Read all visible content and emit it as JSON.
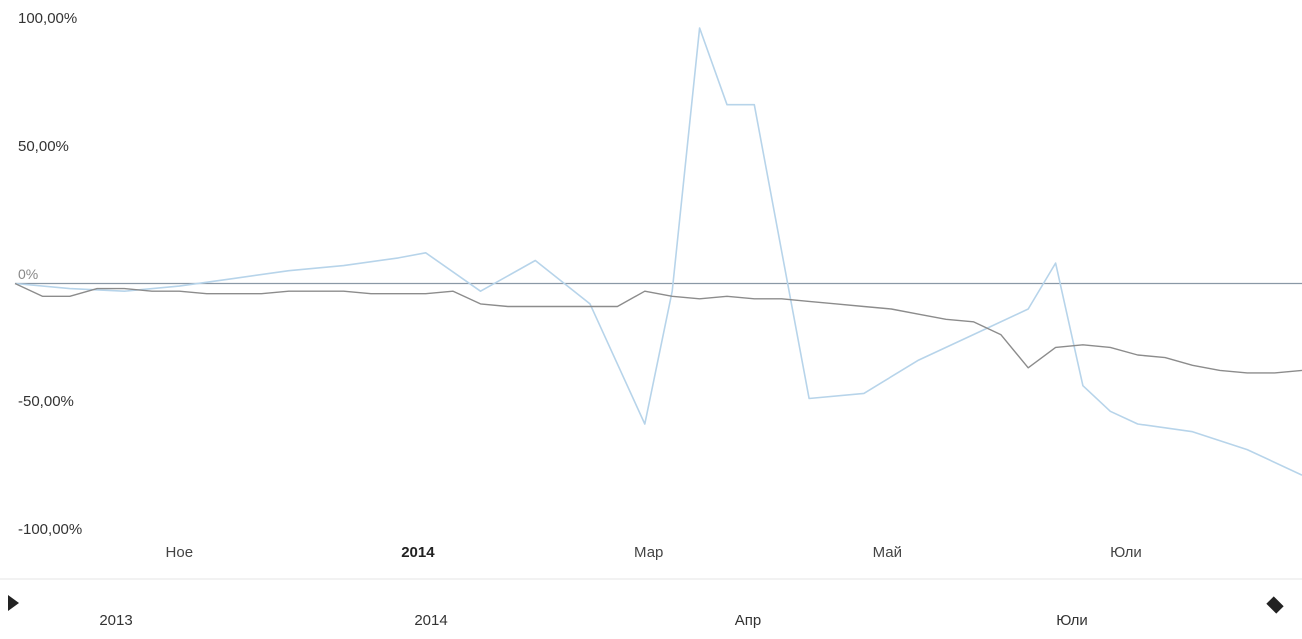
{
  "chart_data": {
    "type": "line",
    "title": "",
    "xlabel": "",
    "ylabel": "",
    "ylim": [
      -100,
      100
    ],
    "y_ticks": [
      "100,00%",
      "50,00%",
      "0%",
      "-50,00%",
      "-100,00%"
    ],
    "x_ticks": [
      {
        "label": "Ное",
        "bold": false
      },
      {
        "label": "2014",
        "bold": true
      },
      {
        "label": "Мар",
        "bold": false
      },
      {
        "label": "Май",
        "bold": false
      },
      {
        "label": "Юли",
        "bold": false
      }
    ],
    "grid": false,
    "legend": "none",
    "series": [
      {
        "color": "#8c8c8c",
        "x": [
          "2013-09-20",
          "2013-09-27",
          "2013-10-04",
          "2013-10-11",
          "2013-10-18",
          "2013-10-25",
          "2013-11-01",
          "2013-11-08",
          "2013-11-15",
          "2013-11-22",
          "2013-11-29",
          "2013-12-06",
          "2013-12-13",
          "2013-12-20",
          "2013-12-27",
          "2014-01-03",
          "2014-01-10",
          "2014-01-17",
          "2014-01-24",
          "2014-01-31",
          "2014-02-07",
          "2014-02-14",
          "2014-02-21",
          "2014-02-28",
          "2014-03-07",
          "2014-03-14",
          "2014-03-21",
          "2014-03-28",
          "2014-04-04",
          "2014-04-11",
          "2014-04-18",
          "2014-04-25",
          "2014-05-02",
          "2014-05-09",
          "2014-05-16",
          "2014-05-23",
          "2014-05-30",
          "2014-06-06",
          "2014-06-13",
          "2014-06-20",
          "2014-06-27",
          "2014-07-04",
          "2014-07-11",
          "2014-07-18",
          "2014-07-25",
          "2014-08-01",
          "2014-08-08",
          "2014-08-15"
        ],
        "values": [
          0,
          -5,
          -5,
          -2,
          -2,
          -3,
          -3,
          -4,
          -4,
          -4,
          -3,
          -3,
          -3,
          -4,
          -4,
          -4,
          -3,
          -8,
          -9,
          -9,
          -9,
          -9,
          -9,
          -3,
          -5,
          -6,
          -5,
          -6,
          -6,
          -7,
          -8,
          -9,
          -10,
          -12,
          -14,
          -15,
          -20,
          -33,
          -25,
          -24,
          -25,
          -28,
          -29,
          -32,
          -34,
          -35,
          -35,
          -34
        ]
      },
      {
        "color": "#b7d4ea",
        "x": [
          "2013-09-20",
          "2013-10-04",
          "2013-10-18",
          "2013-11-01",
          "2013-11-15",
          "2013-11-29",
          "2013-12-13",
          "2013-12-27",
          "2014-01-03",
          "2014-01-17",
          "2014-01-31",
          "2014-02-14",
          "2014-02-28",
          "2014-03-07",
          "2014-03-14",
          "2014-03-21",
          "2014-03-28",
          "2014-04-11",
          "2014-04-25",
          "2014-05-09",
          "2014-05-23",
          "2014-06-06",
          "2014-06-13",
          "2014-06-20",
          "2014-06-27",
          "2014-07-04",
          "2014-07-18",
          "2014-08-01",
          "2014-08-15"
        ],
        "values": [
          0,
          -2,
          -3,
          -1,
          2,
          5,
          7,
          10,
          12,
          -3,
          9,
          -8,
          -55,
          -3,
          100,
          70,
          70,
          -45,
          -43,
          -30,
          -20,
          -10,
          8,
          -40,
          -50,
          -55,
          -58,
          -65,
          -75
        ]
      }
    ]
  },
  "navigator": {
    "labels": [
      "2013",
      "2014",
      "Апр",
      "Юли"
    ]
  }
}
